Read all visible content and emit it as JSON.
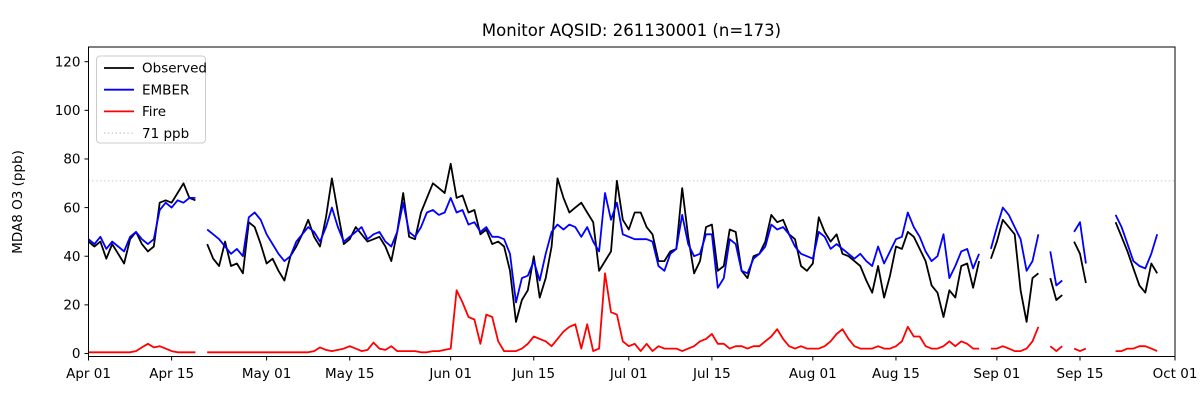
{
  "figure": {
    "background": "#ffffff",
    "spine_color": "#000000"
  },
  "chart_data": {
    "type": "line",
    "title": "Monitor AQSID: 261130001 (n=173)",
    "ylabel": "MDA8 O3 (ppb)",
    "xlabel": "",
    "n_points": 173,
    "grid": false,
    "legend_position": "upper left",
    "ylim": [
      -1.2,
      126
    ],
    "yticks": [
      0,
      20,
      40,
      60,
      80,
      100,
      120
    ],
    "x_axis_note": "daily values, day index 0 = Apr 01, axis ends at day 183 = Oct 01",
    "n_days": 183,
    "xticks": [
      {
        "day": 0,
        "label": "Apr 01"
      },
      {
        "day": 14,
        "label": "Apr 15"
      },
      {
        "day": 30,
        "label": "May 01"
      },
      {
        "day": 44,
        "label": "May 15"
      },
      {
        "day": 61,
        "label": "Jun 01"
      },
      {
        "day": 75,
        "label": "Jun 15"
      },
      {
        "day": 91,
        "label": "Jul 01"
      },
      {
        "day": 105,
        "label": "Jul 15"
      },
      {
        "day": 122,
        "label": "Aug 01"
      },
      {
        "day": 136,
        "label": "Aug 15"
      },
      {
        "day": 153,
        "label": "Sep 01"
      },
      {
        "day": 167,
        "label": "Sep 15"
      },
      {
        "day": 183,
        "label": "Oct 01"
      }
    ],
    "threshold": {
      "value": 71,
      "label": "71 ppb",
      "color": "#d3d3d3",
      "style": "dotted"
    },
    "series": [
      {
        "name": "Observed",
        "color": "#000000",
        "values": [
          46,
          44,
          46,
          39,
          45,
          41,
          37,
          47,
          50,
          45,
          42,
          44,
          62,
          63,
          62,
          66,
          70,
          64,
          63,
          null,
          45,
          39,
          36,
          46,
          36,
          37,
          33,
          54,
          52,
          45,
          37,
          39,
          34,
          30,
          40,
          44,
          49,
          55,
          48,
          44,
          56,
          72,
          58,
          45,
          47,
          52,
          49,
          46,
          47,
          48,
          44,
          38,
          50,
          66,
          48,
          47,
          58,
          64,
          70,
          68,
          66,
          78,
          64,
          65,
          58,
          59,
          49,
          51,
          45,
          46,
          44,
          34,
          13,
          22,
          26,
          40,
          23,
          31,
          44,
          72,
          64,
          58,
          60,
          62,
          58,
          54,
          34,
          38,
          42,
          71,
          55,
          51,
          58,
          58,
          52,
          49,
          38,
          38,
          42,
          43,
          68,
          48,
          33,
          38,
          52,
          53,
          34,
          36,
          51,
          50,
          34,
          31,
          40,
          41,
          46,
          57,
          54,
          55,
          49,
          47,
          36,
          34,
          37,
          56,
          50,
          46,
          49,
          41,
          40,
          38,
          36,
          30,
          25,
          36,
          23,
          32,
          44,
          43,
          50,
          48,
          43,
          38,
          28,
          25,
          15,
          26,
          23,
          36,
          37,
          27,
          38,
          null,
          39,
          46,
          55,
          52,
          49,
          26,
          13,
          31,
          33,
          null,
          31,
          22,
          24,
          null,
          46,
          41,
          29,
          null,
          null,
          null,
          null,
          54,
          48,
          42,
          35,
          28,
          25,
          37,
          33,
          null,
          null
        ]
      },
      {
        "name": "EMBER",
        "color": "#0000ff",
        "values": [
          47,
          45,
          48,
          43,
          46,
          44,
          42,
          48,
          50,
          47,
          45,
          47,
          59,
          62,
          60,
          63,
          62,
          64,
          64,
          null,
          51,
          49,
          47,
          44,
          41,
          43,
          40,
          56,
          58,
          55,
          49,
          45,
          41,
          38,
          40,
          46,
          49,
          52,
          50,
          46,
          52,
          60,
          52,
          46,
          48,
          50,
          52,
          47,
          49,
          50,
          46,
          44,
          50,
          62,
          50,
          48,
          52,
          58,
          59,
          57,
          58,
          64,
          58,
          59,
          53,
          54,
          50,
          52,
          48,
          48,
          47,
          41,
          21,
          31,
          32,
          38,
          30,
          41,
          50,
          53,
          51,
          53,
          52,
          48,
          52,
          46,
          42,
          66,
          55,
          62,
          49,
          48,
          47,
          47,
          47,
          46,
          36,
          34,
          41,
          43,
          57,
          45,
          40,
          41,
          49,
          49,
          27,
          31,
          47,
          45,
          34,
          33,
          39,
          41,
          44,
          53,
          51,
          52,
          49,
          44,
          41,
          40,
          39,
          50,
          48,
          43,
          45,
          43,
          41,
          39,
          41,
          38,
          36,
          44,
          37,
          42,
          47,
          48,
          58,
          52,
          48,
          42,
          38,
          40,
          49,
          31,
          36,
          42,
          43,
          35,
          41,
          null,
          43,
          52,
          60,
          57,
          52,
          47,
          34,
          38,
          49,
          null,
          42,
          28,
          30,
          null,
          50,
          54,
          37,
          null,
          null,
          null,
          null,
          57,
          52,
          45,
          38,
          36,
          35,
          41,
          49,
          null,
          null
        ]
      },
      {
        "name": "Fire",
        "color": "#ff0000",
        "values": [
          0.5,
          0.5,
          0.5,
          0.5,
          0.5,
          0.5,
          0.5,
          0.5,
          1,
          2.5,
          4,
          2.5,
          3,
          2,
          1,
          0.5,
          0.5,
          0.5,
          0.5,
          null,
          0.5,
          0.5,
          0.5,
          0.5,
          0.5,
          0.5,
          0.5,
          0.5,
          0.5,
          0.5,
          0.5,
          0.5,
          0.5,
          0.5,
          0.5,
          0.5,
          0.5,
          0.5,
          1,
          2.5,
          1.5,
          1,
          1.5,
          2,
          3,
          2,
          1,
          1.5,
          4.5,
          2,
          1.5,
          3,
          1,
          1,
          1,
          1,
          0.5,
          0.5,
          1,
          1,
          1.5,
          2,
          26,
          21,
          15,
          14,
          4,
          16,
          15,
          5,
          1,
          1,
          1,
          2,
          4,
          7,
          6,
          5,
          3,
          6,
          9,
          11,
          12,
          2,
          12,
          1,
          2,
          33,
          17,
          16,
          5,
          3,
          4,
          1,
          4,
          1,
          3,
          2,
          2,
          2,
          1,
          2,
          3,
          5,
          6,
          8,
          4,
          4,
          2,
          3,
          3,
          2,
          3,
          3,
          5,
          7,
          10,
          6,
          3,
          2,
          3,
          2,
          2,
          2,
          3,
          5,
          8,
          10,
          6,
          3,
          2,
          2,
          2,
          3,
          2,
          2,
          3,
          5,
          11,
          7,
          7,
          3,
          2,
          2,
          3,
          5,
          3,
          5,
          4,
          2,
          2,
          null,
          2,
          2,
          3,
          2,
          1,
          1,
          2,
          5,
          11,
          null,
          3,
          1,
          3,
          null,
          2,
          1,
          2,
          null,
          null,
          null,
          null,
          1,
          1,
          2,
          2,
          3,
          3,
          2,
          1,
          null,
          null
        ]
      }
    ]
  }
}
